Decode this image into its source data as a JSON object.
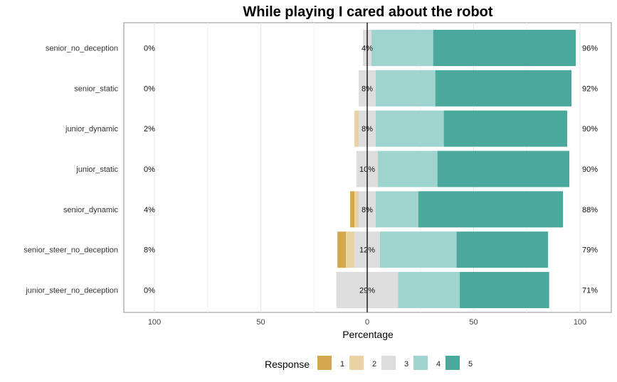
{
  "chart_data": {
    "type": "bar",
    "title": "While playing I cared about the robot",
    "xlabel": "Percentage",
    "ylabel": "",
    "xlim": [
      -100,
      100
    ],
    "x_ticks": [
      -100,
      -50,
      0,
      50,
      100
    ],
    "x_tick_labels": [
      "100",
      "50",
      "0",
      "50",
      "100"
    ],
    "grid": true,
    "legend_position": "bottom",
    "legend_title": "Response",
    "categories": [
      "senior_no_deception",
      "senior_static",
      "junior_dynamic",
      "junior_static",
      "senior_dynamic",
      "senior_steer_no_deception",
      "junior_steer_no_deception"
    ],
    "series": [
      {
        "name": "1",
        "color": "#D4A84F",
        "values": [
          0,
          0,
          0,
          0,
          2,
          4,
          0
        ]
      },
      {
        "name": "2",
        "color": "#E9D3A4",
        "values": [
          0,
          0,
          2,
          0,
          2,
          4,
          0
        ]
      },
      {
        "name": "3",
        "color": "#DDDDDD",
        "values": [
          4,
          8,
          8,
          10,
          8,
          12,
          29
        ]
      },
      {
        "name": "4",
        "color": "#A0D4CE",
        "values": [
          29,
          28,
          32,
          28,
          20,
          36,
          29
        ]
      },
      {
        "name": "5",
        "color": "#4BA89C",
        "values": [
          67,
          64,
          58,
          62,
          68,
          43,
          42
        ]
      }
    ],
    "low_labels": [
      "0%",
      "0%",
      "2%",
      "0%",
      "4%",
      "8%",
      "0%"
    ],
    "neutral_labels": [
      "4%",
      "8%",
      "8%",
      "10%",
      "8%",
      "12%",
      "29%"
    ],
    "high_labels": [
      "96%",
      "92%",
      "90%",
      "90%",
      "88%",
      "79%",
      "71%"
    ]
  }
}
